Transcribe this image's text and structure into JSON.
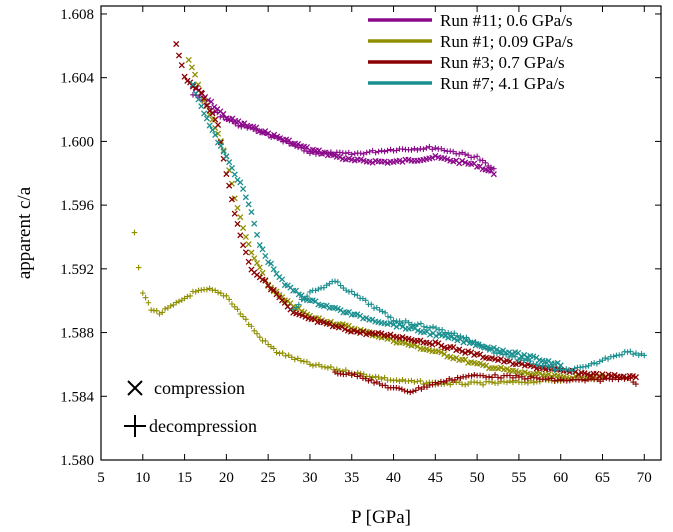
{
  "chart_data": {
    "type": "scatter",
    "title": "",
    "xlabel": "P [GPa]",
    "ylabel": "apparent c/a",
    "xlim": [
      5,
      72
    ],
    "ylim": [
      1.58,
      1.6085
    ],
    "xticks": [
      "5",
      "10",
      "15",
      "20",
      "25",
      "30",
      "35",
      "40",
      "45",
      "50",
      "55",
      "60",
      "65",
      "70"
    ],
    "yticks": [
      "1.580",
      "1.584",
      "1.588",
      "1.592",
      "1.596",
      "1.600",
      "1.604",
      "1.608"
    ],
    "grid": false,
    "legend_position": "top-right",
    "series": [
      {
        "name": "Run #11; 0.6 GPa/s",
        "color": "#8b0a8b",
        "compression": [
          [
            16,
            1.6035
          ],
          [
            20,
            1.6015
          ],
          [
            25,
            1.6005
          ],
          [
            30,
            1.5995
          ],
          [
            35,
            1.5988
          ],
          [
            40,
            1.5987
          ],
          [
            45,
            1.599
          ],
          [
            50,
            1.5985
          ],
          [
            52,
            1.598
          ]
        ],
        "decompression": [
          [
            16,
            1.603
          ],
          [
            20,
            1.6013
          ],
          [
            25,
            1.6004
          ],
          [
            30,
            1.5993
          ],
          [
            35,
            1.5992
          ],
          [
            40,
            1.5995
          ],
          [
            45,
            1.5996
          ],
          [
            50,
            1.599
          ],
          [
            52,
            1.5982
          ]
        ]
      },
      {
        "name": "Run #1; 0.09 GPa/s",
        "color": "#8f8f00",
        "compression": [
          [
            15.5,
            1.6052
          ],
          [
            17,
            1.603
          ],
          [
            19,
            1.6005
          ],
          [
            20,
            1.599
          ],
          [
            21,
            1.5965
          ],
          [
            22,
            1.5945
          ],
          [
            23,
            1.593
          ],
          [
            25,
            1.591
          ],
          [
            27,
            1.59
          ],
          [
            30,
            1.589
          ],
          [
            35,
            1.5883
          ],
          [
            40,
            1.5875
          ],
          [
            45,
            1.5868
          ],
          [
            50,
            1.586
          ],
          [
            55,
            1.5855
          ],
          [
            60,
            1.5852
          ],
          [
            65,
            1.5852
          ]
        ],
        "decompression": [
          [
            9,
            1.5943
          ],
          [
            9.5,
            1.592
          ],
          [
            10,
            1.5905
          ],
          [
            11,
            1.5895
          ],
          [
            12,
            1.5892
          ],
          [
            14,
            1.5898
          ],
          [
            16,
            1.5905
          ],
          [
            18,
            1.5907
          ],
          [
            20,
            1.5903
          ],
          [
            22,
            1.589
          ],
          [
            24,
            1.5877
          ],
          [
            26,
            1.5868
          ],
          [
            30,
            1.586
          ],
          [
            35,
            1.5855
          ],
          [
            40,
            1.585
          ],
          [
            45,
            1.5848
          ],
          [
            50,
            1.5848
          ],
          [
            55,
            1.5849
          ],
          [
            60,
            1.585
          ]
        ]
      },
      {
        "name": "Run #3; 0.7 GPa/s",
        "color": "#8b0000",
        "compression": [
          [
            14,
            1.6062
          ],
          [
            15,
            1.604
          ],
          [
            17,
            1.603
          ],
          [
            19,
            1.601
          ],
          [
            20,
            1.598
          ],
          [
            21,
            1.5955
          ],
          [
            22,
            1.5935
          ],
          [
            23,
            1.592
          ],
          [
            25,
            1.591
          ],
          [
            28,
            1.5892
          ],
          [
            32,
            1.5885
          ],
          [
            36,
            1.588
          ],
          [
            40,
            1.5878
          ],
          [
            45,
            1.5873
          ],
          [
            50,
            1.5866
          ],
          [
            55,
            1.586
          ],
          [
            60,
            1.5856
          ],
          [
            65,
            1.5853
          ],
          [
            69,
            1.5852
          ]
        ],
        "decompression": [
          [
            33,
            1.5855
          ],
          [
            36,
            1.5853
          ],
          [
            38,
            1.5848
          ],
          [
            40,
            1.5845
          ],
          [
            42,
            1.5843
          ],
          [
            45,
            1.5848
          ],
          [
            48,
            1.5852
          ],
          [
            50,
            1.5853
          ],
          [
            55,
            1.5852
          ],
          [
            60,
            1.585
          ],
          [
            64,
            1.585
          ],
          [
            68,
            1.5852
          ],
          [
            69,
            1.5848
          ]
        ]
      },
      {
        "name": "Run #7; 4.1 GPa/s",
        "color": "#1a8f8f",
        "compression": [
          [
            16,
            1.6035
          ],
          [
            18,
            1.601
          ],
          [
            20,
            1.599
          ],
          [
            22,
            1.597
          ],
          [
            23,
            1.5955
          ],
          [
            24,
            1.5935
          ],
          [
            25,
            1.5925
          ],
          [
            27,
            1.591
          ],
          [
            30,
            1.59
          ],
          [
            33,
            1.5895
          ],
          [
            36,
            1.589
          ],
          [
            40,
            1.5885
          ],
          [
            44,
            1.588
          ],
          [
            48,
            1.5875
          ],
          [
            52,
            1.587
          ],
          [
            56,
            1.5865
          ],
          [
            60,
            1.586
          ]
        ],
        "decompression": [
          [
            28,
            1.5895
          ],
          [
            30,
            1.5905
          ],
          [
            33,
            1.5912
          ],
          [
            35,
            1.5905
          ],
          [
            38,
            1.5895
          ],
          [
            40,
            1.5888
          ],
          [
            44,
            1.5884
          ],
          [
            48,
            1.5878
          ],
          [
            52,
            1.5868
          ],
          [
            56,
            1.5862
          ],
          [
            60,
            1.5856
          ],
          [
            63,
            1.5858
          ],
          [
            66,
            1.5865
          ],
          [
            68,
            1.5868
          ],
          [
            70,
            1.5866
          ]
        ]
      }
    ],
    "annotations": [
      {
        "symbol": "×",
        "label": "compression"
      },
      {
        "symbol": "+",
        "label": "decompression"
      }
    ]
  }
}
